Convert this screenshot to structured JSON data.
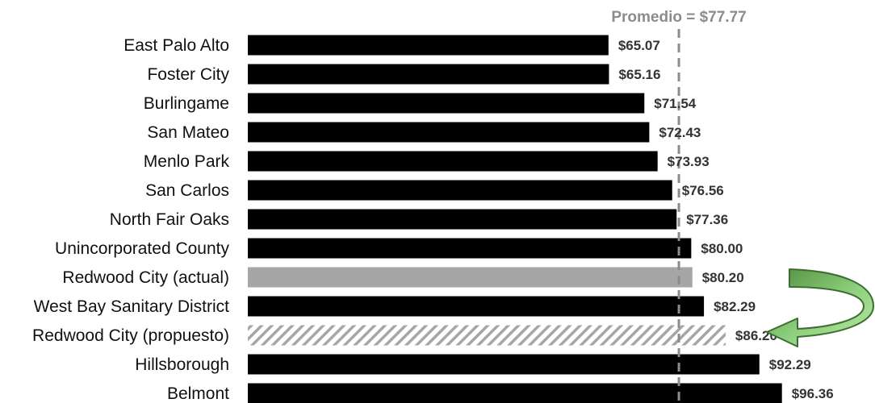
{
  "chart_data": {
    "type": "bar",
    "orientation": "horizontal",
    "categories": [
      "East Palo Alto",
      "Foster City",
      "Burlingame",
      "San Mateo",
      "Menlo Park",
      "San Carlos",
      "North Fair Oaks",
      "Unincorporated County",
      "Redwood City (actual)",
      "West Bay Sanitary District",
      "Redwood City (propuesto)",
      "Hillsborough",
      "Belmont"
    ],
    "values": [
      65.07,
      65.16,
      71.54,
      72.43,
      73.93,
      76.56,
      77.36,
      80.0,
      80.2,
      82.29,
      86.2,
      92.29,
      96.36
    ],
    "value_labels": [
      "$65.07",
      "$65.16",
      "$71.54",
      "$72.43",
      "$73.93",
      "$76.56",
      "$77.36",
      "$80.00",
      "$80.20",
      "$82.29",
      "$86.20",
      "$92.29",
      "$96.36"
    ],
    "bar_styles": [
      "solid",
      "solid",
      "solid",
      "solid",
      "solid",
      "solid",
      "solid",
      "solid",
      "gray",
      "solid",
      "hatched",
      "solid",
      "solid"
    ],
    "xlim": [
      0,
      100
    ],
    "average": {
      "value": 77.77,
      "label": "Promedio = $77.77",
      "line_style": "dashed"
    },
    "grid": false,
    "annotation": {
      "type": "curved-arrow",
      "from": "Redwood City (actual)",
      "to": "Redwood City (propuesto)"
    }
  },
  "colors": {
    "bar": "#000000",
    "bar_highlight": "#a6a6a6",
    "hatch": "#a6a6a6",
    "average_line": "#8c8c8c",
    "arrow_fill": "#8fd17e",
    "arrow_fill_dark": "#4e8a3c",
    "arrow_stroke": "#3d6e30"
  }
}
